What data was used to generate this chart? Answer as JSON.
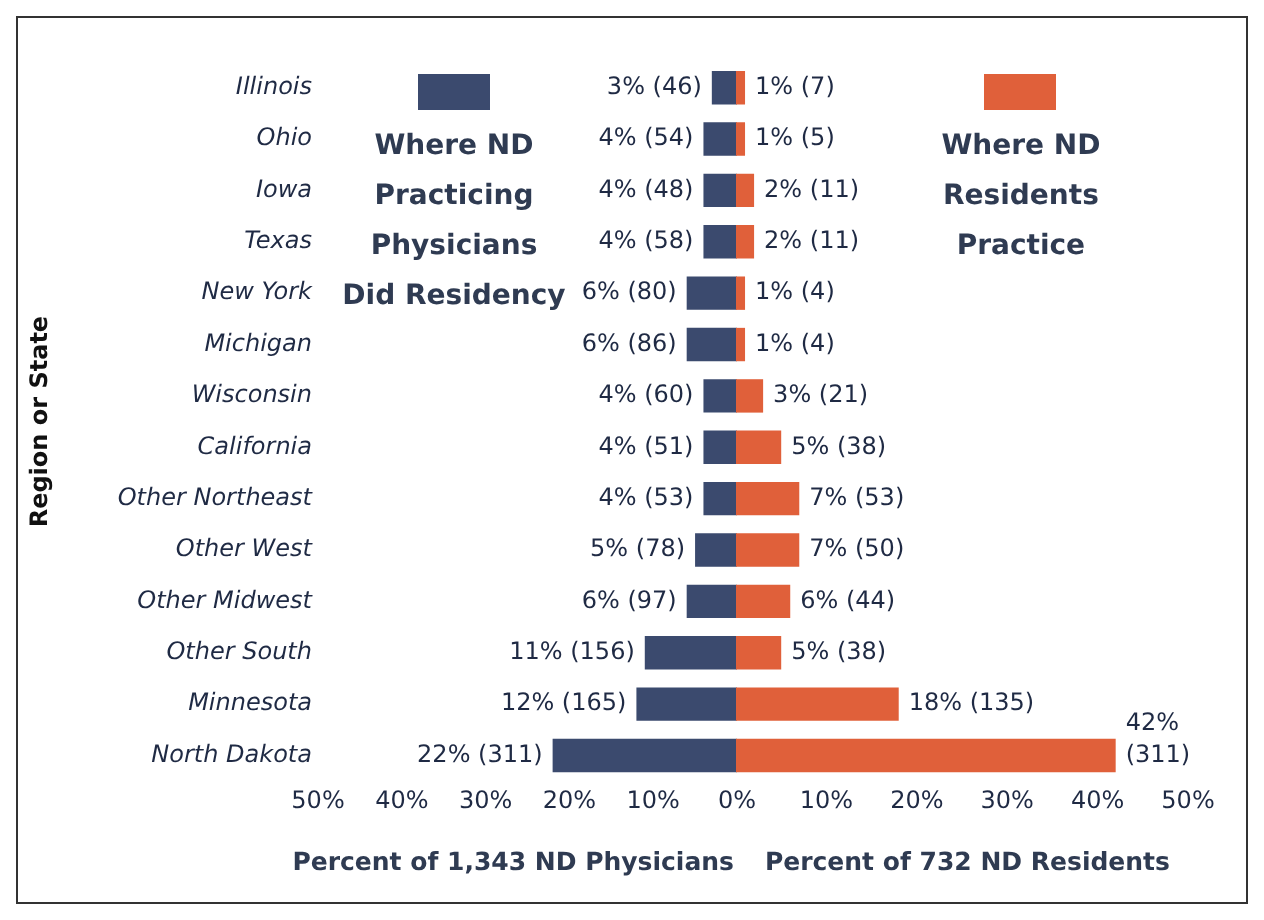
{
  "chart_data": [
    {
      "type": "bar",
      "orientation": "horizontal",
      "ylabel": "Region or State",
      "xlabel": "Percent of 1,343 ND Physicians",
      "legend": "top",
      "grid": false,
      "categories": [
        "Illinois",
        "Ohio",
        "Iowa",
        "Texas",
        "New York",
        "Michigan",
        "Wisconsin",
        "California",
        "Other Northeast",
        "Other West",
        "Other Midwest",
        "Other South",
        "Minnesota",
        "North Dakota"
      ],
      "series": [
        {
          "name": "Where ND Practicing Physicians Did Residency",
          "color": "#3b4a6e",
          "values": [
            3,
            4,
            4,
            4,
            6,
            6,
            4,
            4,
            4,
            5,
            6,
            11,
            12,
            22
          ],
          "value_labels": [
            "3% (46)",
            "4% (54)",
            "4% (48)",
            "4% (58)",
            "6% (80)",
            "6% (86)",
            "4% (60)",
            "4% (51)",
            "4% (53)",
            "5% (78)",
            "6% (97)",
            "11% (156)",
            "12% (165)",
            "22% (311)"
          ]
        }
      ],
      "xlim": [
        50,
        0
      ],
      "xticks": [
        {
          "value": 50,
          "label": "50%"
        },
        {
          "value": 40,
          "label": "40%"
        },
        {
          "value": 30,
          "label": "30%"
        },
        {
          "value": 20,
          "label": "20%"
        },
        {
          "value": 10,
          "label": "10%"
        },
        {
          "value": 0,
          "label": "0%"
        }
      ]
    },
    {
      "type": "bar",
      "orientation": "horizontal",
      "xlabel": "Percent of 732 ND Residents",
      "legend": "top",
      "grid": false,
      "tick_labels": "x",
      "categories": [
        null,
        null,
        null,
        null,
        null,
        null,
        null,
        null,
        null,
        null,
        null,
        null,
        null,
        null
      ],
      "series": [
        {
          "name": "Where ND Residents Practice",
          "color": "#e0603a",
          "values": [
            1,
            1,
            2,
            2,
            1,
            1,
            3,
            5,
            7,
            7,
            6,
            5,
            18,
            42
          ],
          "value_labels": [
            "1% (7)",
            "1% (5)",
            "2% (11)",
            "2% (11)",
            "1% (4)",
            "1% (4)",
            "3% (21)",
            "5% (38)",
            "7% (53)",
            "7% (50)",
            "6% (44)",
            "5% (38)",
            "18% (135)",
            "42% (311)"
          ]
        }
      ],
      "xlim": [
        0,
        50
      ],
      "xticks": [
        {
          "value": 10,
          "label": "10%"
        },
        {
          "value": 20,
          "label": "20%"
        },
        {
          "value": 30,
          "label": "30%"
        },
        {
          "value": 40,
          "label": "40%"
        },
        {
          "value": 50,
          "label": "50%"
        }
      ]
    }
  ]
}
